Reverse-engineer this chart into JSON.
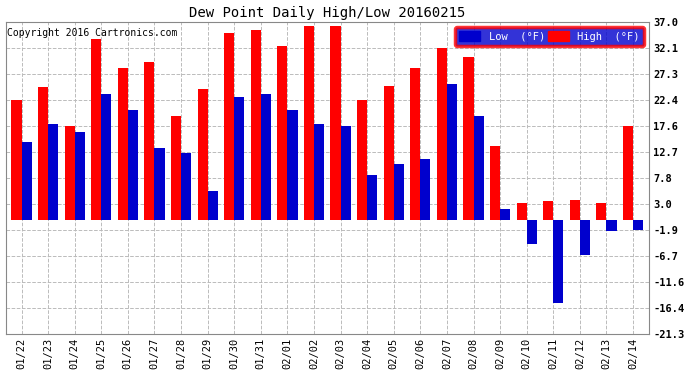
{
  "title": "Dew Point Daily High/Low 20160215",
  "copyright": "Copyright 2016 Cartronics.com",
  "legend_low": "Low  (°F)",
  "legend_high": "High  (°F)",
  "dates": [
    "01/22",
    "01/23",
    "01/24",
    "01/25",
    "01/26",
    "01/27",
    "01/28",
    "01/29",
    "01/30",
    "01/31",
    "02/01",
    "02/02",
    "02/03",
    "02/04",
    "02/05",
    "02/06",
    "02/07",
    "02/08",
    "02/09",
    "02/10",
    "02/11",
    "02/12",
    "02/13",
    "02/14"
  ],
  "high_vals": [
    22.4,
    24.8,
    17.6,
    33.8,
    28.4,
    29.5,
    19.5,
    24.5,
    35.0,
    35.6,
    32.5,
    36.2,
    36.2,
    22.4,
    25.0,
    28.5,
    32.1,
    30.5,
    13.8,
    3.2,
    3.5,
    3.8,
    3.2,
    17.6
  ],
  "low_vals": [
    14.5,
    18.0,
    16.5,
    23.5,
    20.5,
    13.5,
    12.5,
    5.5,
    23.0,
    23.5,
    20.5,
    18.0,
    17.5,
    8.5,
    10.5,
    11.5,
    25.5,
    19.5,
    2.0,
    -4.5,
    -15.5,
    -6.5,
    -2.0,
    -1.9
  ],
  "ylim": [
    -21.3,
    37.0
  ],
  "yticks": [
    37.0,
    32.1,
    27.3,
    22.4,
    17.6,
    12.7,
    7.8,
    3.0,
    -1.9,
    -6.7,
    -11.6,
    -16.4,
    -21.3
  ],
  "color_high": "#ff0000",
  "color_low": "#0000cd",
  "bg_color": "#ffffff",
  "grid_color": "#bbbbbb",
  "bar_width": 0.38
}
